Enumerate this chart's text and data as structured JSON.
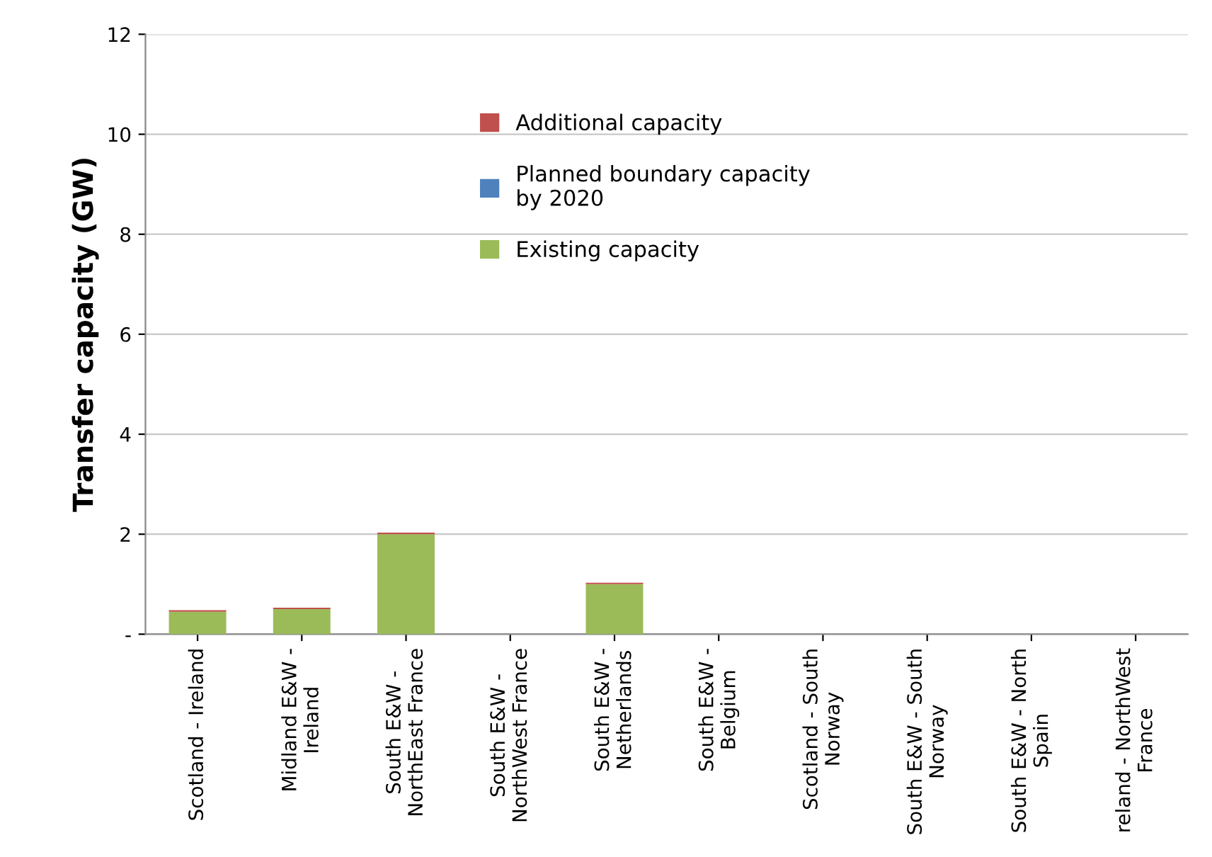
{
  "chart_data": {
    "type": "bar",
    "stacked": true,
    "ylabel": "Transfer capacity (GW)",
    "categories": [
      "Scotland - Ireland",
      "Midland E&W -\nIreland",
      "South E&W -\nNorthEast France",
      "South E&W -\nNorthWest France",
      "South E&W -\nNetherlands",
      "South E&W -\nBelgium",
      "Scotland - South\nNorway",
      "South E&W - South\nNorway",
      "South E&W - North\nSpain",
      "reland - NorthWest\nFrance"
    ],
    "series": [
      {
        "name": "Existing capacity",
        "color": "#9bbb59",
        "values": [
          0.45,
          0.5,
          2.0,
          0,
          1.0,
          0,
          0,
          0,
          0,
          0
        ]
      },
      {
        "name": "Planned boundary capacity\nby 2020",
        "color": "#4f81bd",
        "values": [
          0,
          0,
          0,
          0,
          0,
          0,
          0,
          0,
          0,
          0
        ]
      },
      {
        "name": "Additional capacity",
        "color": "#c0504d",
        "values": [
          0.03,
          0.03,
          0.03,
          0,
          0.03,
          0,
          0,
          0,
          0,
          0
        ]
      }
    ],
    "ylim": [
      0,
      12
    ],
    "yticks": [
      {
        "value": 0,
        "label": "-"
      },
      2,
      4,
      6,
      8,
      10,
      12
    ],
    "grid": "y",
    "legend": "top"
  }
}
